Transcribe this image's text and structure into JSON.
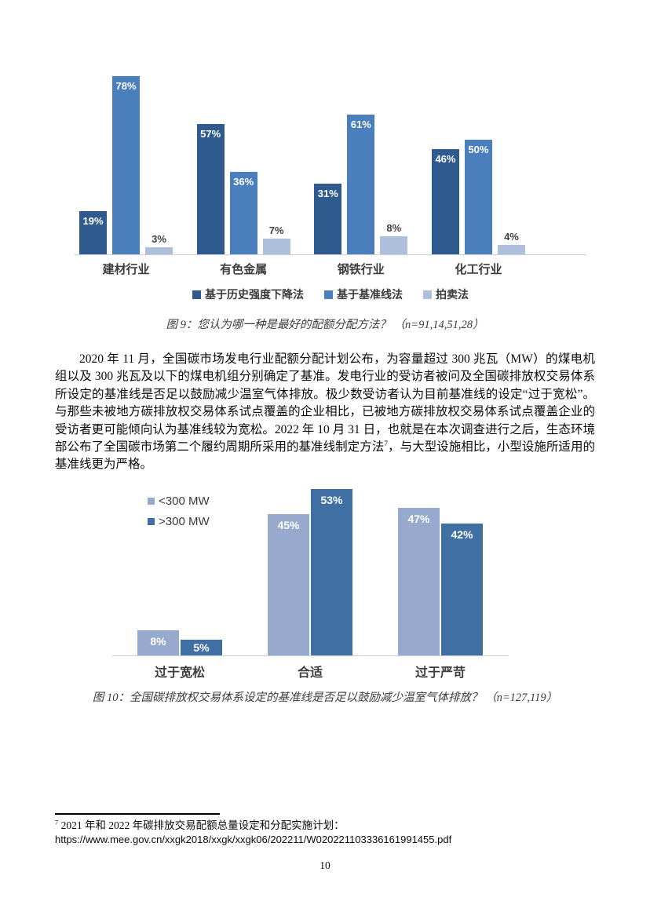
{
  "figure9": {
    "caption": "图 9：您认为哪一种是最好的配额分配方法？ （n=91,14,51,28）"
  },
  "figure10": {
    "caption": "图 10：全国碳排放权交易体系设定的基准线是否足以鼓励减少温室气体排放？ （n=127,119）"
  },
  "paragraph": {
    "part1": "2020 年 11 月，全国碳市场发电行业配额分配计划公布，为容量超过 300 兆瓦（MW）的煤电机组以及 300 兆瓦及以下的煤电机组分别确定了基准。发电行业的受访者被问及全国碳排放权交易体系所设定的基准线是否足以鼓励减少温室气体排放。极少数受访者认为目前基准线的设定“过于宽松”。与那些未被地方碳排放权交易体系试点覆盖的企业相比，已被地方碳排放权交易体系试点覆盖企业的受访者更可能倾向认为基准线较为宽松。2022 年 10 月 31 日，也就是在本次调查进行之后，生态环境部公布了全国碳市场第二个履约周期所采用的基准线制定方法",
    "footnote_ref": "7",
    "part2": "，与大型设施相比，小型设施所适用的基准线更为严格。"
  },
  "footnote": {
    "ref": "7",
    "text": " 2021 年和 2022 年碳排放交易配额总量设定和分配实施计划：",
    "url": "https://www.mee.gov.cn/xxgk2018/xxgk/xxgk06/202211/W020221103336161991455.pdf"
  },
  "page": {
    "number": "10"
  },
  "chart_data": [
    {
      "type": "bar",
      "title": "",
      "categories": [
        "建材行业",
        "有色金属",
        "钢铁行业",
        "化工行业"
      ],
      "series": [
        {
          "name": "基于历史强度下降法",
          "color": "#2E5A8E",
          "values": [
            19,
            57,
            31,
            46
          ],
          "label_style": "inside"
        },
        {
          "name": "基于基准线法",
          "color": "#4A7EBC",
          "values": [
            78,
            36,
            61,
            50
          ],
          "label_style": "inside"
        },
        {
          "name": "拍卖法",
          "color": "#AFC0DD",
          "values": [
            3,
            7,
            8,
            4
          ],
          "label_style": "above"
        }
      ],
      "unit": "%",
      "ylim": [
        0,
        83
      ],
      "grid": false,
      "legend_position": "bottom-center",
      "n_values": "n=91,14,51,28"
    },
    {
      "type": "bar",
      "title": "",
      "categories": [
        "过于宽松",
        "合适",
        "过于严苛"
      ],
      "series": [
        {
          "name": "<300 MW",
          "color": "#98A9CE",
          "values": [
            8,
            45,
            47
          ],
          "label_style": "inside"
        },
        {
          "name": ">300 MW",
          "color": "#3F6FA3",
          "values": [
            5,
            53,
            42
          ],
          "label_style": "inside"
        }
      ],
      "unit": "%",
      "ylim": [
        0,
        55
      ],
      "grid": false,
      "legend_position": "top-left-inside",
      "n_values": "n=127,119"
    }
  ]
}
